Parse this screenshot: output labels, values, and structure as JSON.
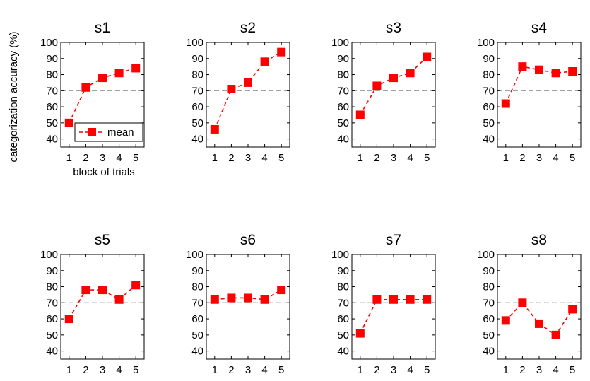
{
  "figure": {
    "ylabel": "categorization accuracy (%)",
    "xlabel": "block of trials",
    "legend_label": "mean",
    "reference_line": 70,
    "colors": {
      "series": "#ff0000",
      "reference": "#a0a0a0",
      "axes": "#000000"
    }
  },
  "chart_data": [
    {
      "type": "line",
      "title": "s1",
      "x": [
        1,
        2,
        3,
        4,
        5
      ],
      "series": [
        {
          "name": "mean",
          "values": [
            50,
            72,
            78,
            81,
            84
          ]
        }
      ],
      "xlim": [
        0.5,
        5.5
      ],
      "ylim": [
        35,
        100
      ],
      "yticks": [
        40,
        50,
        60,
        70,
        80,
        90,
        100
      ],
      "xticks": [
        1,
        2,
        3,
        4,
        5
      ],
      "legend": "bottom-right",
      "grid": false
    },
    {
      "type": "line",
      "title": "s2",
      "x": [
        1,
        2,
        3,
        4,
        5
      ],
      "series": [
        {
          "values": [
            46,
            71,
            75,
            88,
            94
          ]
        }
      ],
      "xlim": [
        0.5,
        5.5
      ],
      "ylim": [
        35,
        100
      ],
      "yticks": [
        40,
        50,
        60,
        70,
        80,
        90,
        100
      ],
      "xticks": [
        1,
        2,
        3,
        4,
        5
      ],
      "grid": false
    },
    {
      "type": "line",
      "title": "s3",
      "x": [
        1,
        2,
        3,
        4,
        5
      ],
      "series": [
        {
          "values": [
            55,
            73,
            78,
            81,
            91
          ]
        }
      ],
      "xlim": [
        0.5,
        5.5
      ],
      "ylim": [
        35,
        100
      ],
      "yticks": [
        40,
        50,
        60,
        70,
        80,
        90,
        100
      ],
      "xticks": [
        1,
        2,
        3,
        4,
        5
      ],
      "grid": false
    },
    {
      "type": "line",
      "title": "s4",
      "x": [
        1,
        2,
        3,
        4,
        5
      ],
      "series": [
        {
          "values": [
            62,
            85,
            83,
            81,
            82
          ]
        }
      ],
      "xlim": [
        0.5,
        5.5
      ],
      "ylim": [
        35,
        100
      ],
      "yticks": [
        40,
        50,
        60,
        70,
        80,
        90,
        100
      ],
      "xticks": [
        1,
        2,
        3,
        4,
        5
      ],
      "grid": false
    },
    {
      "type": "line",
      "title": "s5",
      "x": [
        1,
        2,
        3,
        4,
        5
      ],
      "series": [
        {
          "values": [
            60,
            78,
            78,
            72,
            81
          ]
        }
      ],
      "xlim": [
        0.5,
        5.5
      ],
      "ylim": [
        35,
        100
      ],
      "yticks": [
        40,
        50,
        60,
        70,
        80,
        90,
        100
      ],
      "xticks": [
        1,
        2,
        3,
        4,
        5
      ],
      "grid": false
    },
    {
      "type": "line",
      "title": "s6",
      "x": [
        1,
        2,
        3,
        4,
        5
      ],
      "series": [
        {
          "values": [
            72,
            73,
            73,
            72,
            78
          ]
        }
      ],
      "xlim": [
        0.5,
        5.5
      ],
      "ylim": [
        35,
        100
      ],
      "yticks": [
        40,
        50,
        60,
        70,
        80,
        90,
        100
      ],
      "xticks": [
        1,
        2,
        3,
        4,
        5
      ],
      "grid": false
    },
    {
      "type": "line",
      "title": "s7",
      "x": [
        1,
        2,
        3,
        4,
        5
      ],
      "series": [
        {
          "values": [
            51,
            72,
            72,
            72,
            72
          ]
        }
      ],
      "xlim": [
        0.5,
        5.5
      ],
      "ylim": [
        35,
        100
      ],
      "yticks": [
        40,
        50,
        60,
        70,
        80,
        90,
        100
      ],
      "xticks": [
        1,
        2,
        3,
        4,
        5
      ],
      "grid": false
    },
    {
      "type": "line",
      "title": "s8",
      "x": [
        1,
        2,
        3,
        4,
        5
      ],
      "series": [
        {
          "values": [
            59,
            70,
            57,
            50,
            66
          ]
        }
      ],
      "xlim": [
        0.5,
        5.5
      ],
      "ylim": [
        35,
        100
      ],
      "yticks": [
        40,
        50,
        60,
        70,
        80,
        90,
        100
      ],
      "xticks": [
        1,
        2,
        3,
        4,
        5
      ],
      "grid": false
    }
  ]
}
